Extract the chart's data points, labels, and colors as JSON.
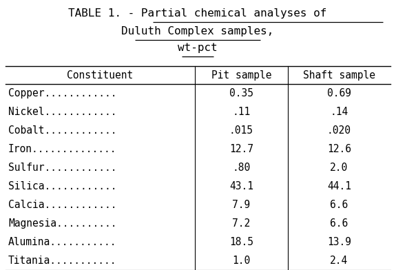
{
  "title_line1_left": "TABLE 1. - ",
  "title_line1_right": "Partial chemical analyses of",
  "title_line2": "Duluth Complex samples,",
  "title_line3": "wt-pct",
  "col_headers": [
    "Constituent",
    "Pit sample",
    "Shaft sample"
  ],
  "rows": [
    [
      "Copper............",
      "0.35",
      "0.69"
    ],
    [
      "Nickel............",
      ".11",
      ".14"
    ],
    [
      "Cobalt............",
      ".015",
      ".020"
    ],
    [
      "Iron..............",
      "12.7",
      "12.6"
    ],
    [
      "Sulfur............",
      ".80",
      "2.0"
    ],
    [
      "Silica............",
      "43.1",
      "44.1"
    ],
    [
      "Calcia............",
      "7.9",
      "6.6"
    ],
    [
      "Magnesia..........",
      "7.2",
      "6.6"
    ],
    [
      "Alumina...........",
      "18.5",
      "13.9"
    ],
    [
      "Titania...........",
      "1.0",
      "2.4"
    ]
  ],
  "bg_color": "#ffffff",
  "text_color": "#000000",
  "font_size": 10.5,
  "header_font_size": 10.5,
  "title_font_size": 11.5
}
